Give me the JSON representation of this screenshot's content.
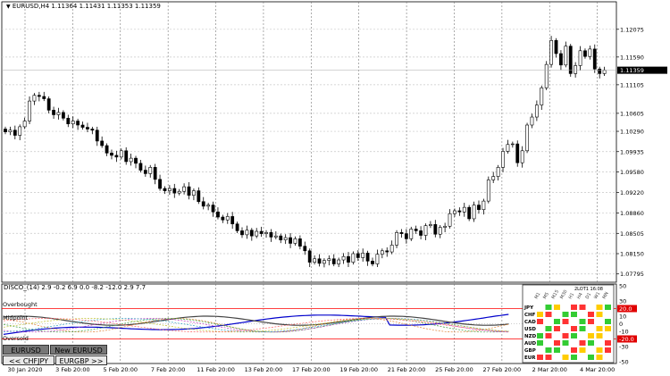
{
  "window": {
    "symbol_label": "EURUSD,H4",
    "ohlc": "1.11364 1.11431 1.11353 1.11359"
  },
  "price_axis": {
    "labels": [
      "1.12075",
      "1.11590",
      "1.11105",
      "1.10605",
      "1.10290",
      "1.09935",
      "1.09580",
      "1.09220",
      "1.08860",
      "1.08505",
      "1.08150",
      "1.07795"
    ],
    "current_price": "1.11359",
    "current_price_color": "#000000"
  },
  "time_axis": {
    "labels": [
      "30 Jan 2020",
      "3 Feb 20:00",
      "5 Feb 20:00",
      "7 Feb 20:00",
      "11 Feb 20:00",
      "13 Feb 20:00",
      "17 Feb 20:00",
      "19 Feb 20:00",
      "21 Feb 20:00",
      "25 Feb 20:00",
      "27 Feb 20:00",
      "2 Mar 20:00",
      "4 Mar 20:00"
    ]
  },
  "indicator": {
    "title": "DISCO_(14) 2.9 -0.2 6.9 0.0 -8.2 -12.0 2.9 7.7",
    "overbought_label": "Overbought",
    "oversold_label": "Oversold",
    "midpoint_label": "Midpoint",
    "axis_labels": [
      "50",
      "30",
      "20.0",
      "10",
      "0",
      "-10",
      "-20.0",
      "-30",
      "-50"
    ],
    "level_colors": {
      "overbought": "#ff0000",
      "oversold": "#ff0000"
    }
  },
  "buttons": {
    "eurusd": "EURUSD",
    "new_eurusd": "New EURUSD",
    "prev_pair": "<< CHFJPY",
    "next_pair": "EURGBP >>"
  },
  "heatmap": {
    "currencies": [
      "JPY",
      "CHF",
      "CAD",
      "USD",
      "NZD",
      "AUD",
      "GBP",
      "EUR"
    ],
    "timeframes": [
      "M1",
      "M5",
      "M15",
      "M30",
      "H1",
      "H4",
      "D1",
      "W1",
      "MN"
    ],
    "time_label": "2LOT1 16:08"
  },
  "chart_data": {
    "type": "candlestick",
    "symbol": "EURUSD",
    "timeframe": "H4",
    "ylim": [
      1.0765,
      1.124
    ],
    "closes": [
      1.1028,
      1.1031,
      1.1022,
      1.1037,
      1.1047,
      1.1082,
      1.1092,
      1.109,
      1.1086,
      1.1066,
      1.1058,
      1.1062,
      1.1052,
      1.1042,
      1.1047,
      1.104,
      1.1036,
      1.1033,
      1.1031,
      1.1012,
      1.1004,
      1.0991,
      1.0987,
      1.0984,
      1.0995,
      1.0976,
      1.0982,
      1.0973,
      1.0961,
      1.0955,
      1.0966,
      1.0945,
      1.0929,
      1.0925,
      1.0929,
      1.0921,
      1.0924,
      1.0932,
      1.0917,
      1.0925,
      1.0906,
      1.0898,
      1.09,
      1.0888,
      1.0879,
      1.0874,
      1.088,
      1.0867,
      1.0855,
      1.0848,
      1.0856,
      1.0846,
      1.0854,
      1.085,
      1.0852,
      1.0844,
      1.0846,
      1.0839,
      1.0843,
      1.0833,
      1.0841,
      1.0828,
      1.082,
      1.08,
      1.0806,
      1.0798,
      1.0803,
      1.0806,
      1.0797,
      1.0804,
      1.081,
      1.08,
      1.0815,
      1.0808,
      1.0816,
      1.0802,
      1.0797,
      1.0814,
      1.082,
      1.0818,
      1.083,
      1.0852,
      1.085,
      1.0841,
      1.0858,
      1.0855,
      1.0847,
      1.0864,
      1.0866,
      1.0849,
      1.0861,
      1.0863,
      1.0885,
      1.089,
      1.0888,
      1.0896,
      1.0876,
      1.09,
      1.0892,
      1.0907,
      1.0944,
      1.095,
      1.0966,
      1.0994,
      1.1006,
      1.1007,
      1.0974,
      1.0995,
      1.104,
      1.1054,
      1.1075,
      1.1105,
      1.1146,
      1.1188,
      1.1165,
      1.1145,
      1.1178,
      1.113,
      1.1144,
      1.117,
      1.116,
      1.1173,
      1.1138,
      1.113,
      1.1136
    ]
  }
}
